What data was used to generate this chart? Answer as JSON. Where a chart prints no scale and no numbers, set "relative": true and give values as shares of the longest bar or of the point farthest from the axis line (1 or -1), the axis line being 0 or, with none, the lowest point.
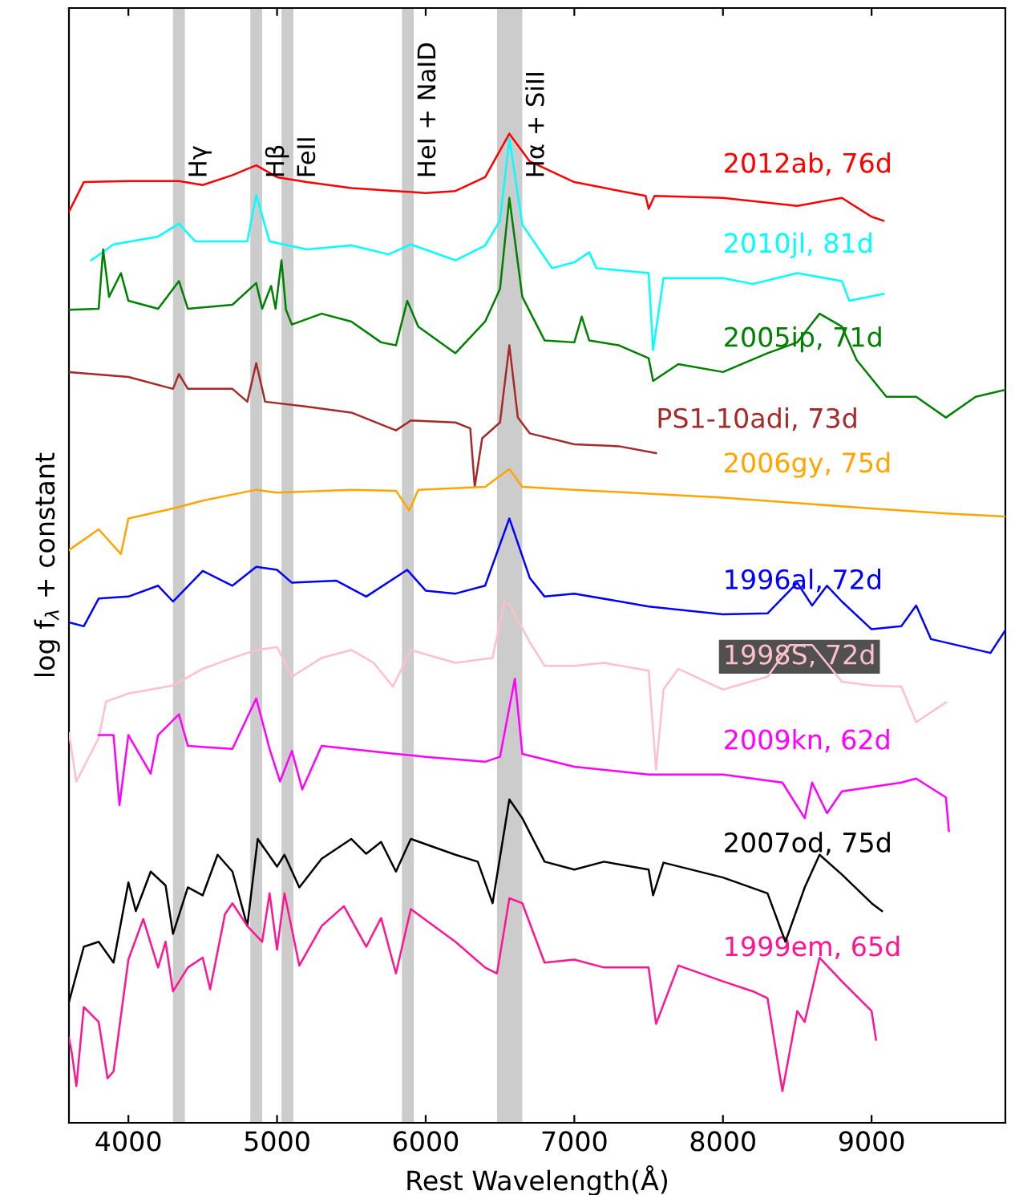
{
  "chart_data": {
    "type": "line",
    "relative": true,
    "xlabel": "Rest Wavelength(Å)",
    "ylabel": "log f$_{λ}$ + constant",
    "xlim": [
      3600,
      9900
    ],
    "xticks": [
      4000,
      5000,
      6000,
      7000,
      8000,
      9000
    ],
    "grid": false,
    "bands": [
      {
        "axis": "x",
        "from": 4300,
        "to": 4380,
        "label": "Hγ",
        "color": "#cccccc"
      },
      {
        "axis": "x",
        "from": 4820,
        "to": 4900,
        "label": "Hβ",
        "color": "#cccccc"
      },
      {
        "axis": "x",
        "from": 5030,
        "to": 5110,
        "label": "FeII",
        "color": "#cccccc"
      },
      {
        "axis": "x",
        "from": 5840,
        "to": 5920,
        "label": "HeI + NaID",
        "color": "#cccccc"
      },
      {
        "axis": "x",
        "from": 6480,
        "to": 6650,
        "label": "Hα + SiII",
        "color": "#cccccc"
      }
    ],
    "series": [
      {
        "name": "2012ab, 76d",
        "color": "#ff0000",
        "x": [
          3600,
          3700,
          4000,
          4340,
          4500,
          4700,
          4860,
          5000,
          5200,
          5500,
          5800,
          6000,
          6200,
          6400,
          6563,
          6700,
          7000,
          7480,
          7500,
          7540,
          8000,
          8500,
          8800,
          9000,
          9080
        ],
        "values": [
          0.921,
          0.951,
          0.952,
          0.952,
          0.948,
          0.958,
          0.968,
          0.956,
          0.951,
          0.945,
          0.942,
          0.94,
          0.942,
          0.956,
          1.0,
          0.972,
          0.951,
          0.937,
          0.924,
          0.937,
          0.935,
          0.927,
          0.935,
          0.916,
          0.912
        ]
      },
      {
        "name": "2010jl, 81d",
        "color": "#00ffff",
        "x": [
          3750,
          3900,
          4200,
          4340,
          4450,
          4800,
          4860,
          4950,
          5200,
          5500,
          5750,
          5900,
          6200,
          6400,
          6500,
          6563,
          6650,
          6800,
          6850,
          7000,
          7100,
          7150,
          7500,
          7530,
          7600,
          8000,
          8200,
          8500,
          8800,
          8850,
          9080
        ],
        "values": [
          0.872,
          0.888,
          0.896,
          0.909,
          0.891,
          0.891,
          0.938,
          0.891,
          0.883,
          0.887,
          0.878,
          0.888,
          0.872,
          0.887,
          0.912,
          0.995,
          0.908,
          0.875,
          0.864,
          0.87,
          0.88,
          0.864,
          0.859,
          0.781,
          0.854,
          0.854,
          0.848,
          0.859,
          0.851,
          0.831,
          0.838
        ]
      },
      {
        "name": "2005ip, 71d",
        "color": "#008000",
        "x": [
          3600,
          3800,
          3830,
          3870,
          3950,
          4000,
          4200,
          4340,
          4400,
          4700,
          4860,
          4900,
          4960,
          4990,
          5030,
          5060,
          5100,
          5300,
          5500,
          5700,
          5800,
          5876,
          5950,
          6200,
          6400,
          6500,
          6563,
          6650,
          6800,
          7000,
          7050,
          7100,
          7300,
          7500,
          7530,
          7700,
          8000,
          8300,
          8500,
          8650,
          8800,
          8900,
          9100,
          9300,
          9500,
          9700,
          9900
        ],
        "values": [
          0.822,
          0.823,
          0.883,
          0.835,
          0.859,
          0.831,
          0.823,
          0.851,
          0.823,
          0.827,
          0.849,
          0.823,
          0.846,
          0.823,
          0.872,
          0.822,
          0.807,
          0.818,
          0.81,
          0.789,
          0.786,
          0.831,
          0.805,
          0.778,
          0.81,
          0.843,
          0.935,
          0.835,
          0.791,
          0.789,
          0.815,
          0.791,
          0.786,
          0.773,
          0.75,
          0.767,
          0.759,
          0.778,
          0.789,
          0.818,
          0.805,
          0.771,
          0.734,
          0.734,
          0.713,
          0.734,
          0.741
        ]
      },
      {
        "name": "PS1-10adi, 73d",
        "color": "#a52a2a",
        "x": [
          3600,
          4000,
          4300,
          4340,
          4400,
          4700,
          4800,
          4860,
          4920,
          5200,
          5500,
          5800,
          5900,
          6200,
          6300,
          6330,
          6380,
          6500,
          6563,
          6620,
          6700,
          7000,
          7300,
          7550
        ],
        "values": [
          0.759,
          0.754,
          0.742,
          0.757,
          0.742,
          0.742,
          0.729,
          0.768,
          0.729,
          0.724,
          0.718,
          0.7,
          0.71,
          0.708,
          0.702,
          0.643,
          0.692,
          0.708,
          0.786,
          0.713,
          0.697,
          0.686,
          0.684,
          0.677
        ]
      },
      {
        "name": "2006gy, 75d",
        "color": "#ffa500",
        "x": [
          3600,
          3800,
          3950,
          4000,
          4300,
          4500,
          4860,
          5000,
          5500,
          5800,
          5890,
          5950,
          6400,
          6563,
          6650,
          7000,
          8000,
          9000,
          9500,
          9900
        ],
        "values": [
          0.579,
          0.6,
          0.575,
          0.611,
          0.621,
          0.629,
          0.64,
          0.637,
          0.64,
          0.639,
          0.619,
          0.64,
          0.643,
          0.661,
          0.643,
          0.64,
          0.632,
          0.621,
          0.616,
          0.613
        ]
      },
      {
        "name": "1996al, 72d",
        "color": "#0000ff",
        "x": [
          3600,
          3700,
          3800,
          4000,
          4200,
          4300,
          4500,
          4700,
          4860,
          5000,
          5100,
          5400,
          5600,
          5876,
          6000,
          6200,
          6400,
          6563,
          6700,
          6800,
          7000,
          7500,
          8000,
          8300,
          8500,
          8600,
          8700,
          8800,
          9000,
          9200,
          9300,
          9400,
          9800,
          9900
        ],
        "values": [
          0.506,
          0.502,
          0.53,
          0.532,
          0.543,
          0.527,
          0.558,
          0.543,
          0.562,
          0.559,
          0.546,
          0.548,
          0.532,
          0.559,
          0.538,
          0.535,
          0.543,
          0.611,
          0.551,
          0.532,
          0.535,
          0.522,
          0.514,
          0.515,
          0.546,
          0.523,
          0.543,
          0.527,
          0.499,
          0.502,
          0.523,
          0.489,
          0.475,
          0.498
        ]
      },
      {
        "name": "1998S, 72d",
        "color": "#ffc0cb",
        "x": [
          3600,
          3650,
          3800,
          3850,
          4000,
          4300,
          4500,
          4700,
          4860,
          5000,
          5100,
          5300,
          5500,
          5650,
          5780,
          5900,
          6200,
          6450,
          6530,
          6563,
          6700,
          6800,
          7000,
          7200,
          7500,
          7550,
          7600,
          7700,
          8000,
          8300,
          8450,
          8600,
          8800,
          9000,
          9200,
          9300,
          9500
        ],
        "values": [
          0.394,
          0.345,
          0.389,
          0.426,
          0.434,
          0.442,
          0.459,
          0.47,
          0.478,
          0.481,
          0.451,
          0.47,
          0.478,
          0.465,
          0.441,
          0.478,
          0.465,
          0.47,
          0.527,
          0.524,
          0.486,
          0.462,
          0.462,
          0.465,
          0.457,
          0.357,
          0.438,
          0.459,
          0.438,
          0.451,
          0.483,
          0.483,
          0.446,
          0.442,
          0.441,
          0.405,
          0.425
        ]
      },
      {
        "name": "2009kn, 62d",
        "color": "#ff00ff",
        "x": [
          3800,
          3900,
          3940,
          4000,
          4150,
          4200,
          4340,
          4400,
          4700,
          4860,
          4950,
          5020,
          5100,
          5170,
          5300,
          5800,
          6000,
          6400,
          6500,
          6600,
          6650,
          7000,
          7500,
          8000,
          8400,
          8550,
          8600,
          8700,
          8800,
          9200,
          9300,
          9500,
          9520
        ],
        "values": [
          0.392,
          0.392,
          0.321,
          0.392,
          0.353,
          0.392,
          0.413,
          0.381,
          0.378,
          0.429,
          0.378,
          0.345,
          0.376,
          0.337,
          0.381,
          0.373,
          0.37,
          0.365,
          0.37,
          0.449,
          0.373,
          0.36,
          0.352,
          0.352,
          0.344,
          0.308,
          0.344,
          0.313,
          0.335,
          0.344,
          0.348,
          0.329,
          0.295
        ]
      },
      {
        "name": "2007od, 75d",
        "color": "#000000",
        "x": [
          3600,
          3700,
          3800,
          3900,
          4000,
          4050,
          4150,
          4250,
          4300,
          4400,
          4500,
          4600,
          4700,
          4800,
          4870,
          5000,
          5050,
          5150,
          5300,
          5500,
          5600,
          5700,
          5800,
          5900,
          6200,
          6350,
          6450,
          6563,
          6650,
          6800,
          7000,
          7200,
          7500,
          7530,
          7600,
          8000,
          8300,
          8420,
          8550,
          8650,
          8800,
          9000,
          9070
        ],
        "values": [
          0.122,
          0.178,
          0.183,
          0.162,
          0.243,
          0.214,
          0.254,
          0.24,
          0.191,
          0.238,
          0.23,
          0.271,
          0.254,
          0.199,
          0.287,
          0.259,
          0.271,
          0.238,
          0.267,
          0.287,
          0.272,
          0.284,
          0.254,
          0.287,
          0.271,
          0.264,
          0.222,
          0.327,
          0.308,
          0.264,
          0.256,
          0.264,
          0.256,
          0.23,
          0.263,
          0.248,
          0.232,
          0.183,
          0.238,
          0.271,
          0.251,
          0.222,
          0.214
        ]
      },
      {
        "name": "1999em, 65d",
        "color": "#ff1493",
        "x": [
          3600,
          3620,
          3650,
          3700,
          3800,
          3860,
          3900,
          4000,
          4100,
          4200,
          4250,
          4300,
          4400,
          4500,
          4550,
          4650,
          4700,
          4800,
          4900,
          4950,
          5000,
          5050,
          5150,
          5300,
          5450,
          5600,
          5700,
          5800,
          5900,
          6200,
          6400,
          6480,
          6563,
          6650,
          6800,
          7000,
          7200,
          7500,
          7550,
          7700,
          8000,
          8200,
          8300,
          8400,
          8500,
          8550,
          8650,
          8800,
          9000,
          9030
        ],
        "values": [
          0.086,
          0.07,
          0.037,
          0.117,
          0.102,
          0.045,
          0.052,
          0.165,
          0.206,
          0.157,
          0.183,
          0.133,
          0.157,
          0.167,
          0.135,
          0.211,
          0.222,
          0.199,
          0.183,
          0.232,
          0.175,
          0.232,
          0.159,
          0.199,
          0.219,
          0.178,
          0.207,
          0.151,
          0.216,
          0.183,
          0.157,
          0.151,
          0.227,
          0.222,
          0.162,
          0.165,
          0.157,
          0.157,
          0.1,
          0.159,
          0.143,
          0.133,
          0.126,
          0.032,
          0.113,
          0.102,
          0.167,
          0.143,
          0.113,
          0.084
        ]
      }
    ]
  }
}
